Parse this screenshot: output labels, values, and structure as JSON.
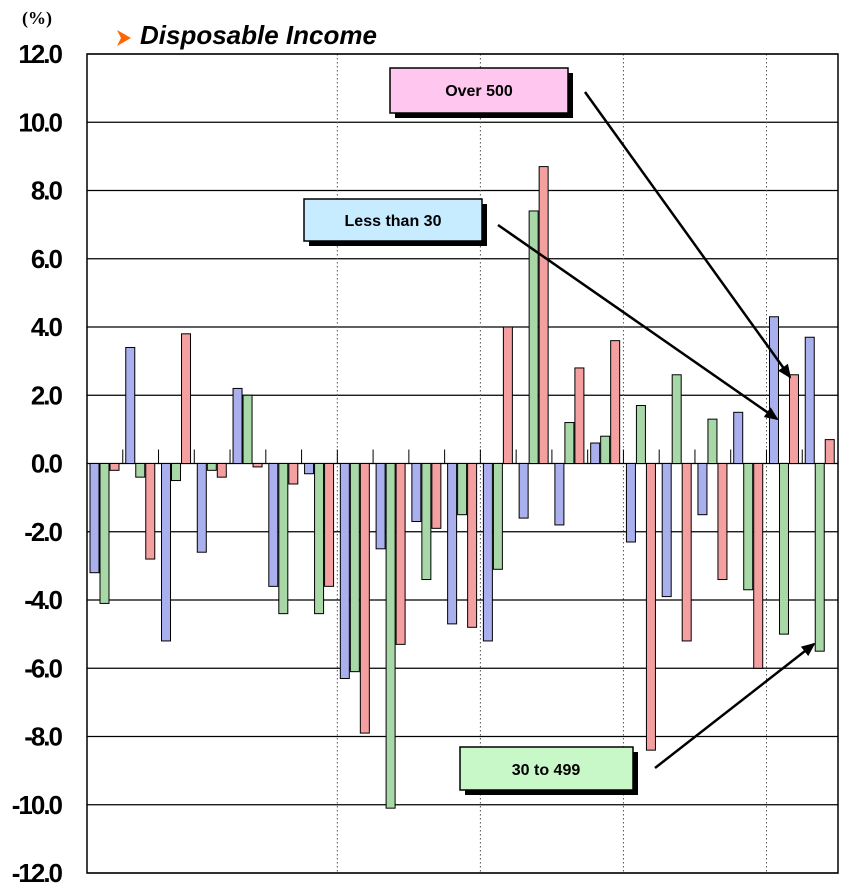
{
  "chart_data": {
    "type": "bar",
    "title": "Disposable Income",
    "unit_label": "(%)",
    "ylim": [
      -12,
      12
    ],
    "ytick_labels": [
      "12.0",
      "10.0",
      "8.0",
      "6.0",
      "4.0",
      "2.0",
      "0.0",
      "-2.0",
      "-4.0",
      "-6.0",
      "-8.0",
      "-10.0",
      "-12.0"
    ],
    "grid": true,
    "series": [
      {
        "name": "Less than 30",
        "color": "#aab0ee",
        "values": [
          -3.2,
          3.4,
          -5.2,
          -2.6,
          2.2,
          -3.6,
          -0.3,
          -6.3,
          -2.5,
          -1.7,
          -4.7,
          -5.2,
          -1.6,
          -1.8,
          0.6,
          -2.3,
          -3.9,
          -1.5,
          1.5,
          4.3,
          3.7
        ]
      },
      {
        "name": "30 to 499",
        "color": "#a8d8a8",
        "values": [
          -4.1,
          -0.4,
          -0.5,
          -0.2,
          2.0,
          -4.4,
          -4.4,
          -6.1,
          -10.1,
          -3.4,
          -1.5,
          -3.1,
          7.4,
          1.2,
          0.8,
          1.7,
          2.6,
          1.3,
          -3.7,
          -5.0,
          -5.5
        ]
      },
      {
        "name": "Over 500",
        "color": "#f4a0a0",
        "values": [
          -0.2,
          -2.8,
          3.8,
          -0.4,
          -0.1,
          -0.6,
          -3.6,
          -7.9,
          -5.3,
          -1.9,
          -4.8,
          4.0,
          8.7,
          2.8,
          3.6,
          -8.4,
          -5.2,
          -3.4,
          -6.0,
          2.6,
          0.7
        ]
      }
    ],
    "callouts": [
      {
        "label": "Over 500",
        "fill": "#ffc6f0"
      },
      {
        "label": "Less than 30",
        "fill": "#c8ecff"
      },
      {
        "label": "30 to 499",
        "fill": "#c8f7c8"
      }
    ]
  }
}
